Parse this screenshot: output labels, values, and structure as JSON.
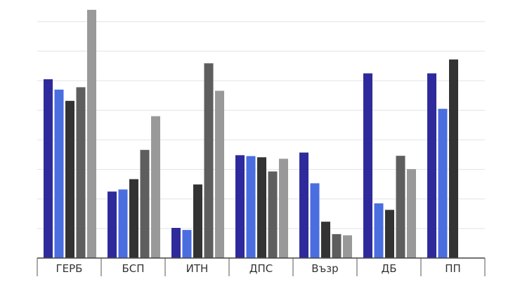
{
  "chart_data": {
    "type": "bar",
    "categories": [
      "ГЕРБ",
      "БСП",
      "ИТН",
      "ДПС",
      "Възр",
      "ДБ",
      "ПП"
    ],
    "ylim": [
      0,
      84
    ],
    "grid": true,
    "legend": "none",
    "colors": [
      "#2e2a9c",
      "#4a6ee0",
      "#333333",
      "#5e5e5e",
      "#999999"
    ],
    "series": [
      {
        "values": [
          60.5,
          22.5,
          10.2,
          34.8,
          35.7,
          62.5,
          62.5
        ]
      },
      {
        "values": [
          57.0,
          23.2,
          9.5,
          34.5,
          25.3,
          18.5,
          50.5
        ]
      },
      {
        "values": [
          53.2,
          26.7,
          24.9,
          34.1,
          12.3,
          16.3,
          67.2
        ]
      },
      {
        "values": [
          57.8,
          36.6,
          65.9,
          29.3,
          8.1,
          34.6,
          null
        ]
      },
      {
        "values": [
          84.0,
          48.0,
          56.6,
          33.6,
          7.7,
          30.1,
          null
        ]
      }
    ]
  }
}
